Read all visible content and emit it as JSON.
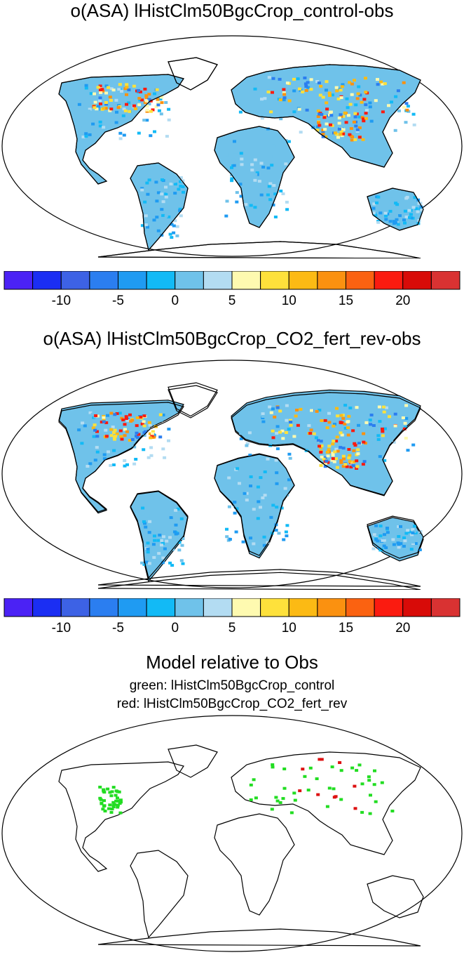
{
  "panels": [
    {
      "title": "o(ASA) lHistClm50BgcCrop_control-obs"
    },
    {
      "title": "o(ASA) lHistClm50BgcCrop_CO2_fert_rev-obs"
    }
  ],
  "colorbar": {
    "colors": [
      "#4b22f5",
      "#1b2ef3",
      "#3d62e5",
      "#2b7ef0",
      "#1f9bf2",
      "#12baf6",
      "#6fc2ea",
      "#b3dcf2",
      "#fefab0",
      "#fee13b",
      "#fcba14",
      "#fb9110",
      "#fb6211",
      "#fb1b10",
      "#d80b08",
      "#d93232"
    ],
    "tick_labels": [
      "-10",
      "-5",
      "0",
      "5",
      "10",
      "15",
      "20"
    ]
  },
  "relative_panel": {
    "title": "Model relative to Obs",
    "legend_green": "green: lHistClm50BgcCrop_control",
    "legend_red": "red: lHistClm50BgcCrop_CO2_fert_rev"
  }
}
